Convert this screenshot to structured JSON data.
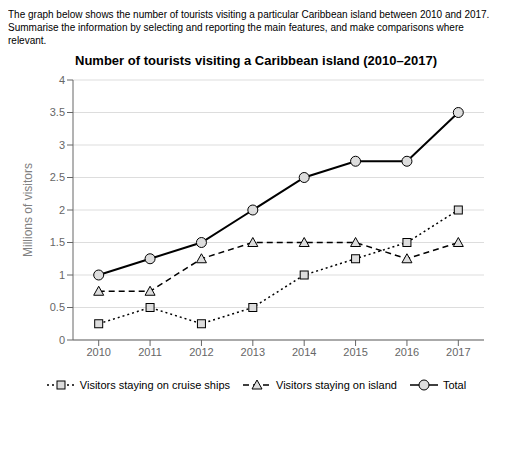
{
  "chart_data": {
    "type": "line",
    "title": "Number of tourists visiting a Caribbean island (2010–2017)",
    "subtitle": [
      "The graph below shows the number of tourists visiting a particular Caribbean island between 2010 and 2017.",
      "Summarise the information by selecting and reporting the main features, and make comparisons where relevant."
    ],
    "y_label": "Millions of visitors",
    "x": [
      2010,
      2011,
      2012,
      2013,
      2014,
      2015,
      2016,
      2017
    ],
    "series": [
      {
        "name": "Visitors staying on cruise ships",
        "color": "#000000",
        "marker": "square",
        "line_style": "dotted",
        "values": [
          0.25,
          0.5,
          0.25,
          0.5,
          1.0,
          1.25,
          1.5,
          2.0
        ]
      },
      {
        "name": "Visitors staying on island",
        "color": "#000000",
        "marker": "triangle",
        "line_style": "dashed",
        "values": [
          0.75,
          0.75,
          1.25,
          1.5,
          1.5,
          1.5,
          1.25,
          1.5
        ]
      },
      {
        "name": "Total",
        "color": "#000000",
        "marker": "circle",
        "line_style": "solid",
        "values": [
          1.0,
          1.25,
          1.5,
          2.0,
          2.5,
          2.75,
          2.75,
          3.5
        ]
      }
    ],
    "xlim": [
      2009.5,
      2017.5
    ],
    "xticks": [
      2010,
      2011,
      2012,
      2013,
      2014,
      2015,
      2016,
      2017
    ],
    "ylim": [
      0,
      4
    ],
    "yticks": [
      0,
      0.5,
      1,
      1.5,
      2,
      2.5,
      3,
      3.5,
      4
    ],
    "grid": true,
    "legend": "bottom"
  }
}
